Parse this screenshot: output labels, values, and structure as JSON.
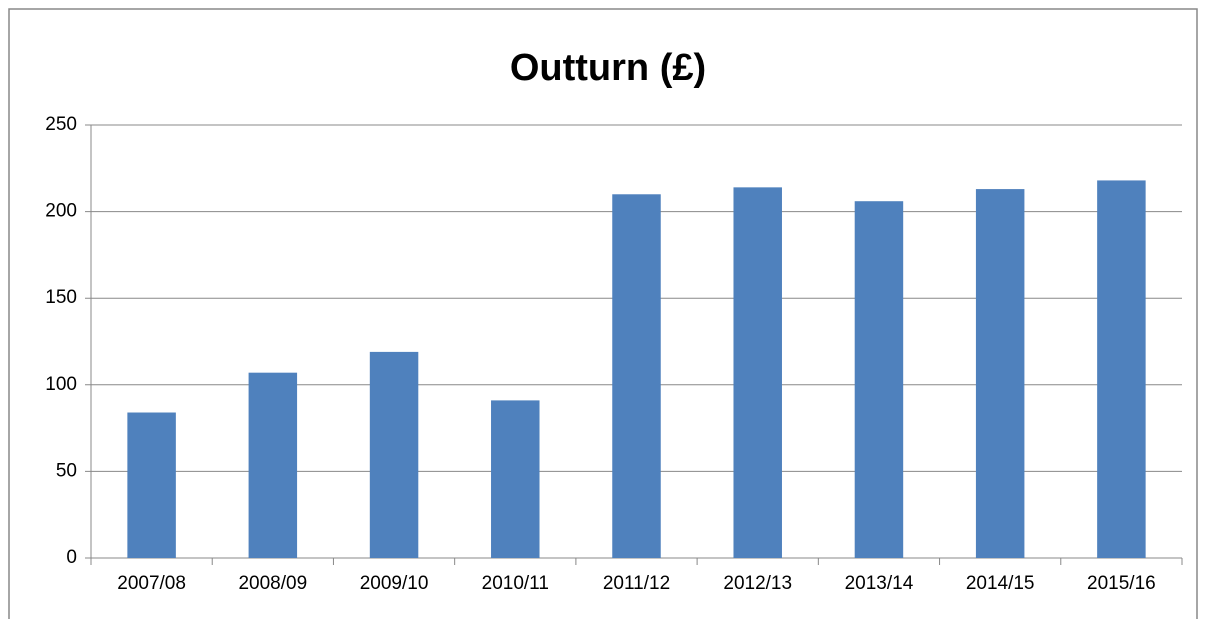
{
  "chart_data": {
    "type": "bar",
    "title": "Outturn (£)",
    "categories": [
      "2007/08",
      "2008/09",
      "2009/10",
      "2010/11",
      "2011/12",
      "2012/13",
      "2013/14",
      "2014/15",
      "2015/16"
    ],
    "values": [
      84,
      107,
      119,
      91,
      210,
      214,
      206,
      213,
      218
    ],
    "color": "#4f81bd",
    "ylim": [
      0,
      250
    ],
    "yticks": [
      0,
      50,
      100,
      150,
      200,
      250
    ],
    "grid": true
  }
}
